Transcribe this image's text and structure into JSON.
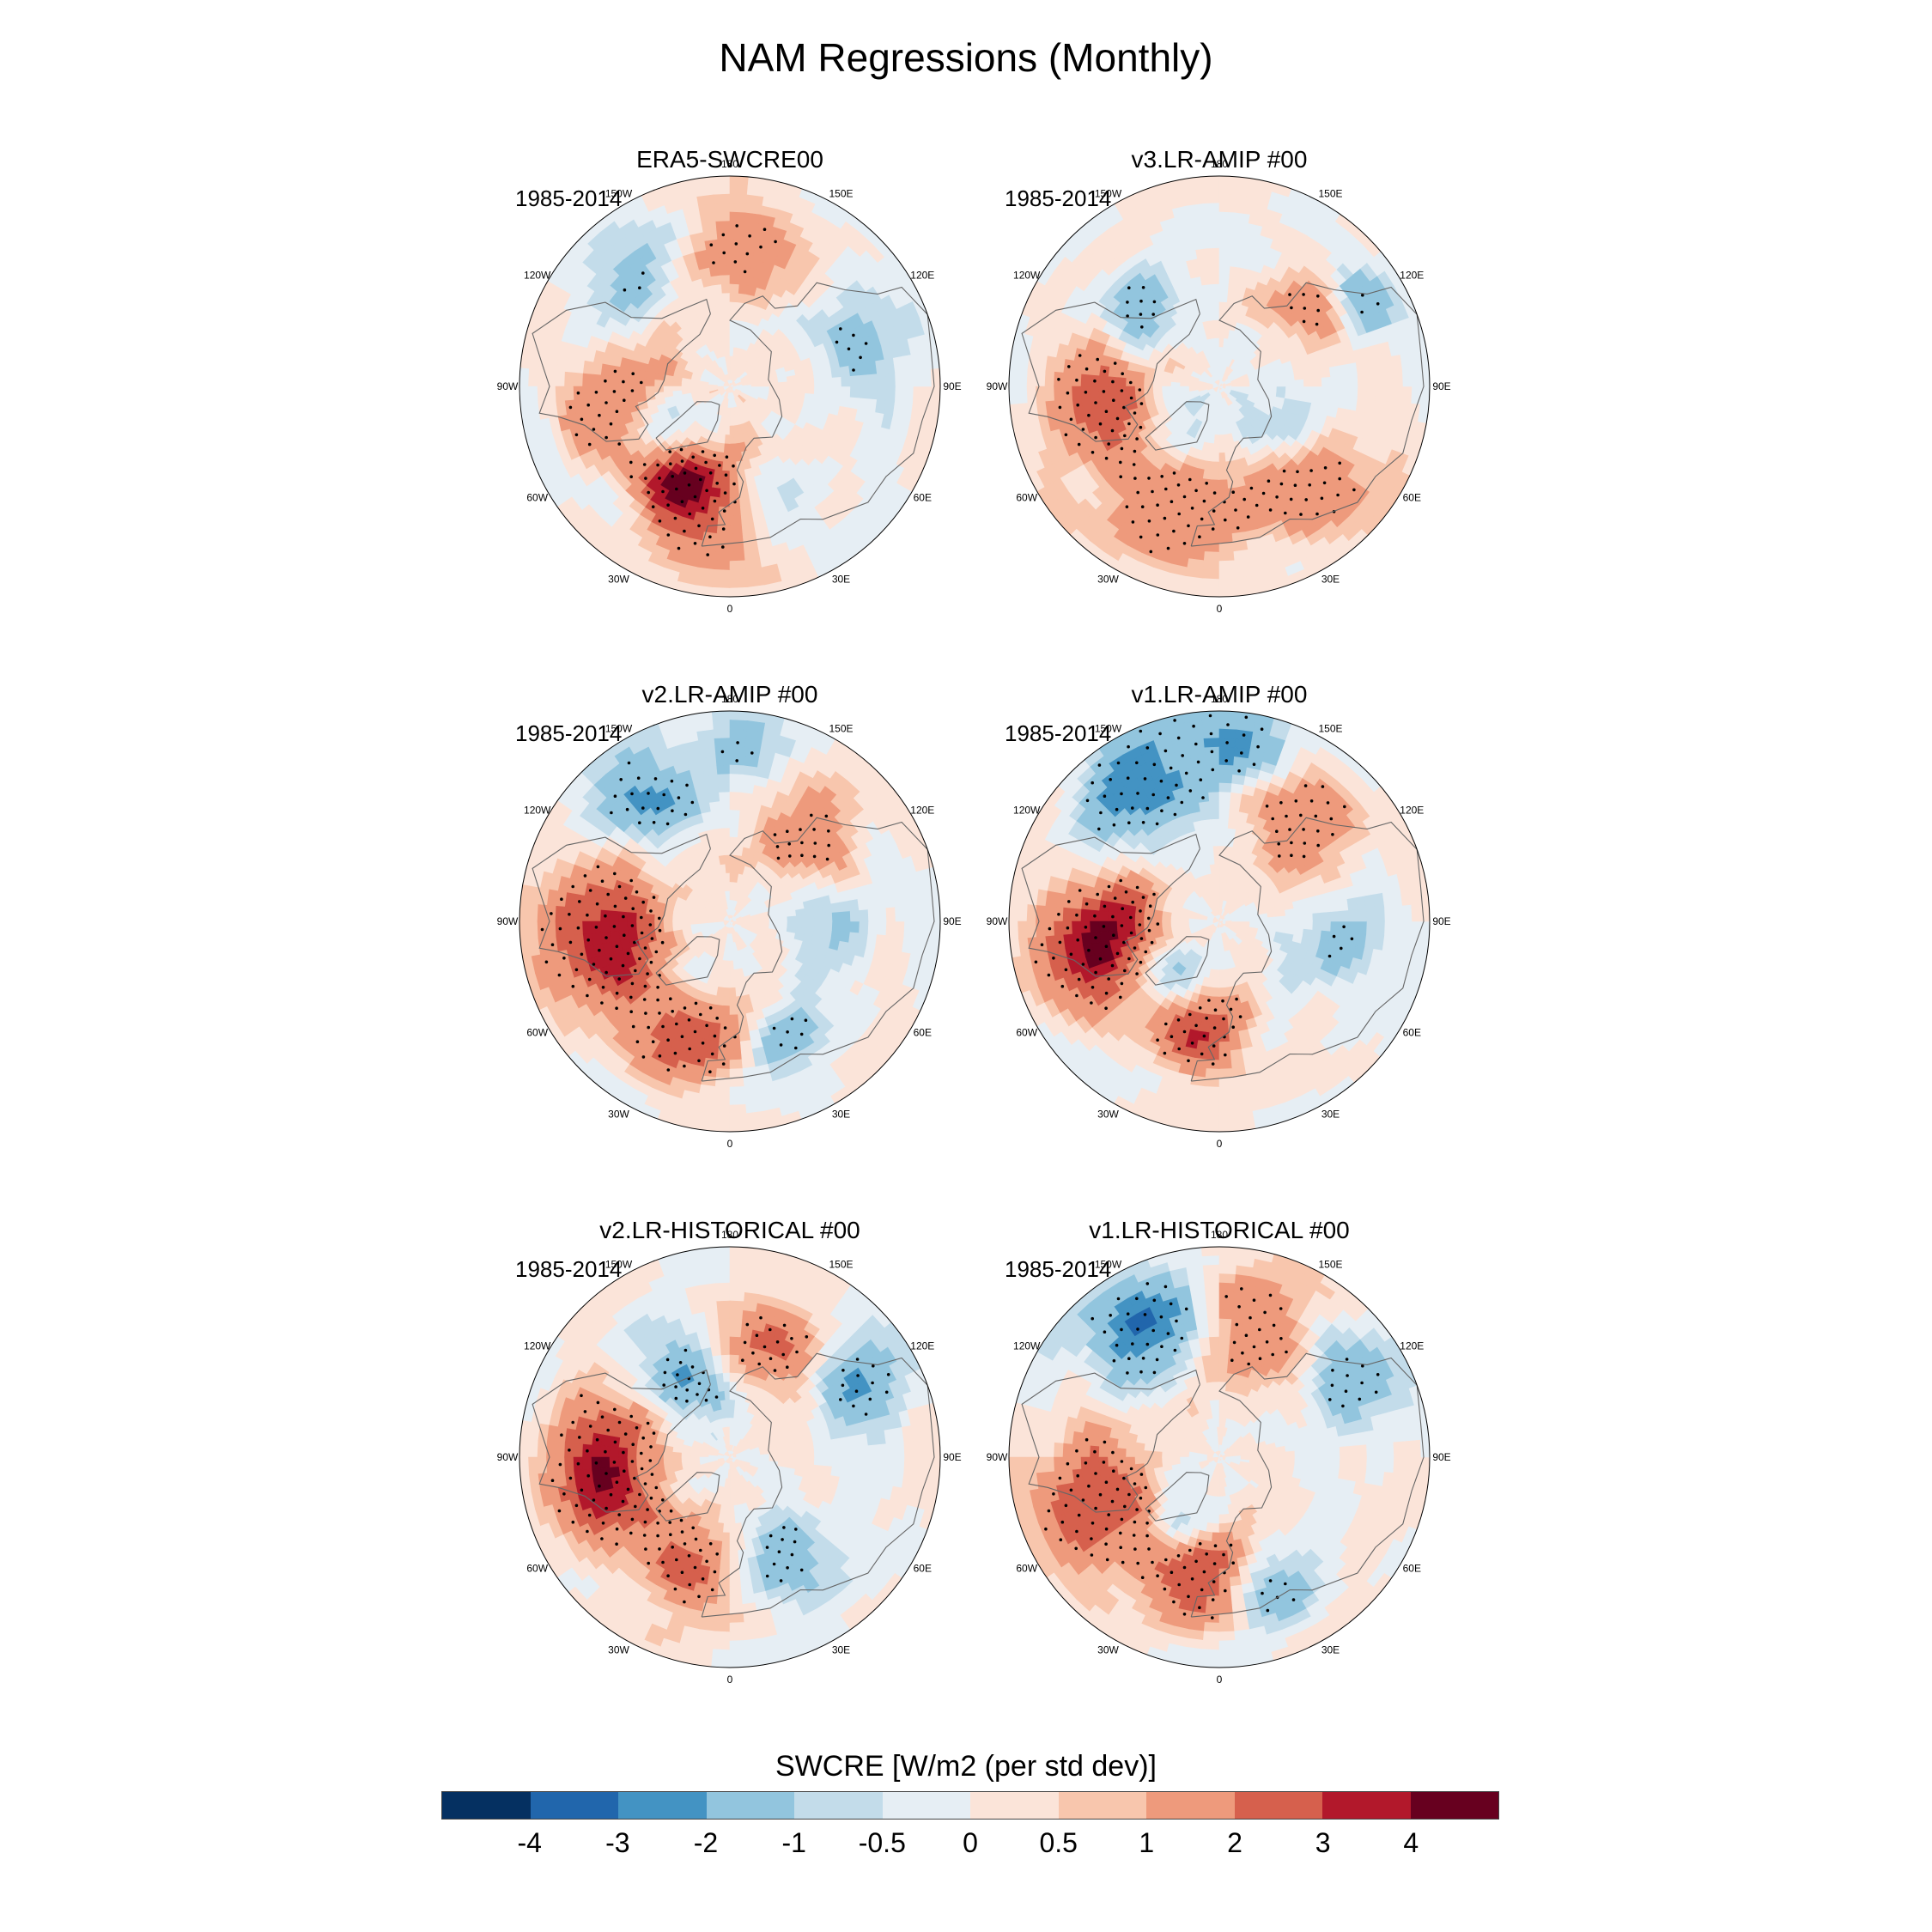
{
  "figure": {
    "title": "NAM Regressions (Monthly)",
    "panels": [
      {
        "title": "ERA5-SWCRE00",
        "period": "1985-2014"
      },
      {
        "title": "v3.LR-AMIP  #00",
        "period": "1985-2014"
      },
      {
        "title": "v2.LR-AMIP  #00",
        "period": "1985-2014"
      },
      {
        "title": "v1.LR-AMIP  #00",
        "period": "1985-2014"
      },
      {
        "title": "v2.LR-HISTORICAL  #00",
        "period": "1985-2014"
      },
      {
        "title": "v1.LR-HISTORICAL  #00",
        "period": "1985-2014"
      }
    ],
    "longitude_labels": [
      "180",
      "150E",
      "120E",
      "90E",
      "60E",
      "30E",
      "0",
      "30W",
      "60W",
      "90W",
      "120W",
      "150W"
    ]
  },
  "colorbar": {
    "title": "SWCRE [W/m2 (per std dev)]",
    "ticks": [
      "-4",
      "-3",
      "-2",
      "-1",
      "-0.5",
      "0",
      "0.5",
      "1",
      "2",
      "3",
      "4"
    ],
    "colors": [
      "#053061",
      "#2166ac",
      "#4393c3",
      "#92c5de",
      "#c3dcea",
      "#e6eef4",
      "#fbe4d9",
      "#f8c6ad",
      "#ee9a7c",
      "#d6604d",
      "#b2182b",
      "#67001f"
    ]
  },
  "chart_data": {
    "type": "map",
    "projection": "north polar stereographic",
    "variable": "SWCRE",
    "units": "W/m2 (per std dev)",
    "contour_levels": [
      -4,
      -3,
      -2,
      -1,
      -0.5,
      0,
      0.5,
      1,
      2,
      3,
      4
    ],
    "panels": [
      {
        "name": "ERA5-SWCRE00",
        "period": "1985-2014",
        "features": [
          {
            "lon": -25,
            "lat": 52,
            "value": 3.5,
            "spread": 9
          },
          {
            "lon": -5,
            "lat": 48,
            "value": 1.8,
            "spread": 16
          },
          {
            "lon": -75,
            "lat": 45,
            "value": 1.8,
            "spread": 9
          },
          {
            "lon": -95,
            "lat": 60,
            "value": 1.5,
            "spread": 10
          },
          {
            "lon": 175,
            "lat": 42,
            "value": 1.5,
            "spread": 14
          },
          {
            "lon": 20,
            "lat": 48,
            "value": -1.6,
            "spread": 10
          },
          {
            "lon": -60,
            "lat": 65,
            "value": -1.5,
            "spread": 9
          },
          {
            "lon": 110,
            "lat": 42,
            "value": -1.3,
            "spread": 12
          },
          {
            "lon": -140,
            "lat": 40,
            "value": -1.2,
            "spread": 12
          }
        ]
      },
      {
        "name": "v3.LR-AMIP  #00",
        "period": "1985-2014",
        "features": [
          {
            "lon": -20,
            "lat": 48,
            "value": 2.0,
            "spread": 16
          },
          {
            "lon": -75,
            "lat": 45,
            "value": 1.6,
            "spread": 12
          },
          {
            "lon": -95,
            "lat": 55,
            "value": 1.5,
            "spread": 12
          },
          {
            "lon": 45,
            "lat": 42,
            "value": 2.0,
            "spread": 12
          },
          {
            "lon": 130,
            "lat": 50,
            "value": 1.5,
            "spread": 10
          },
          {
            "lon": -130,
            "lat": 55,
            "value": -1.8,
            "spread": 10
          },
          {
            "lon": -40,
            "lat": 68,
            "value": -1.6,
            "spread": 9
          },
          {
            "lon": 60,
            "lat": 65,
            "value": -1.3,
            "spread": 10
          },
          {
            "lon": 120,
            "lat": 35,
            "value": -2.0,
            "spread": 7
          }
        ]
      },
      {
        "name": "v2.LR-AMIP  #00",
        "period": "1985-2014",
        "features": [
          {
            "lon": -90,
            "lat": 45,
            "value": 2.5,
            "spread": 14
          },
          {
            "lon": -70,
            "lat": 50,
            "value": 2.0,
            "spread": 12
          },
          {
            "lon": -20,
            "lat": 50,
            "value": 2.8,
            "spread": 12
          },
          {
            "lon": 140,
            "lat": 50,
            "value": 1.8,
            "spread": 12
          },
          {
            "lon": -145,
            "lat": 40,
            "value": -2.5,
            "spread": 10
          },
          {
            "lon": 25,
            "lat": 48,
            "value": -1.5,
            "spread": 9
          },
          {
            "lon": -40,
            "lat": 65,
            "value": -1.5,
            "spread": 8
          },
          {
            "lon": 90,
            "lat": 55,
            "value": -1.2,
            "spread": 10
          },
          {
            "lon": 175,
            "lat": 30,
            "value": -1.5,
            "spread": 10
          }
        ]
      },
      {
        "name": "v1.LR-AMIP  #00",
        "period": "1985-2014",
        "features": [
          {
            "lon": -75,
            "lat": 45,
            "value": 3.2,
            "spread": 12
          },
          {
            "lon": -90,
            "lat": 55,
            "value": 2.5,
            "spread": 10
          },
          {
            "lon": -10,
            "lat": 52,
            "value": 3.0,
            "spread": 10
          },
          {
            "lon": 140,
            "lat": 48,
            "value": 2.0,
            "spread": 12
          },
          {
            "lon": -150,
            "lat": 38,
            "value": -2.8,
            "spread": 12
          },
          {
            "lon": 175,
            "lat": 30,
            "value": -2.2,
            "spread": 10
          },
          {
            "lon": -40,
            "lat": 65,
            "value": -1.8,
            "spread": 8
          },
          {
            "lon": 80,
            "lat": 50,
            "value": -1.5,
            "spread": 10
          }
        ]
      },
      {
        "name": "v2.LR-HISTORICAL  #00",
        "period": "1985-2014",
        "features": [
          {
            "lon": -75,
            "lat": 45,
            "value": 3.2,
            "spread": 12
          },
          {
            "lon": -100,
            "lat": 50,
            "value": 2.0,
            "spread": 12
          },
          {
            "lon": -20,
            "lat": 50,
            "value": 2.5,
            "spread": 10
          },
          {
            "lon": 160,
            "lat": 50,
            "value": 2.0,
            "spread": 12
          },
          {
            "lon": -150,
            "lat": 60,
            "value": -2.5,
            "spread": 10
          },
          {
            "lon": 120,
            "lat": 40,
            "value": -2.5,
            "spread": 9
          },
          {
            "lon": 30,
            "lat": 50,
            "value": -1.8,
            "spread": 10
          }
        ]
      },
      {
        "name": "v1.LR-HISTORICAL  #00",
        "period": "1985-2014",
        "features": [
          {
            "lon": -70,
            "lat": 45,
            "value": 3.0,
            "spread": 14
          },
          {
            "lon": -10,
            "lat": 52,
            "value": 3.2,
            "spread": 12
          },
          {
            "lon": 165,
            "lat": 45,
            "value": 2.2,
            "spread": 12
          },
          {
            "lon": -150,
            "lat": 38,
            "value": -3.0,
            "spread": 12
          },
          {
            "lon": -30,
            "lat": 65,
            "value": -2.5,
            "spread": 8
          },
          {
            "lon": 20,
            "lat": 45,
            "value": -2.0,
            "spread": 9
          },
          {
            "lon": 120,
            "lat": 40,
            "value": -2.2,
            "spread": 9
          }
        ]
      }
    ]
  }
}
